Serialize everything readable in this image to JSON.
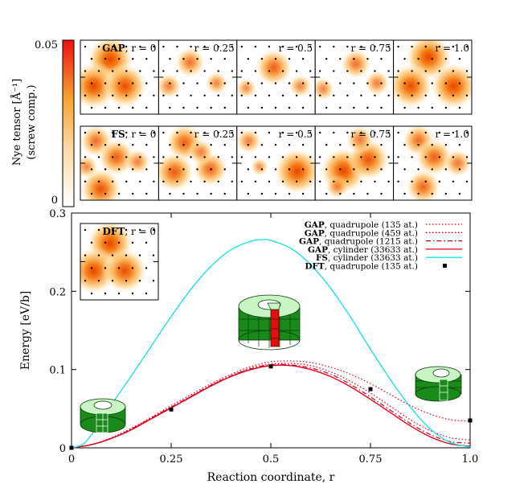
{
  "chart_data": {
    "type": "line",
    "xlabel": "Reaction coordinate, r",
    "ylabel": "Energy [eV/b]",
    "xlim": [
      0,
      1.0
    ],
    "ylim": [
      0,
      0.3
    ],
    "x_ticks": [
      "0",
      "0.25",
      "0.5",
      "0.75",
      "1.0"
    ],
    "y_ticks": [
      "0",
      "0.1",
      "0.2",
      "0.3"
    ],
    "legend_position": "top-right",
    "legend": [
      {
        "bold": "GAP",
        "text": ", quadrupole (135 at.)"
      },
      {
        "bold": "GAP",
        "text": ", quadrupole (459 at.)"
      },
      {
        "bold": "GAP",
        "text": ", quadrupole (1215 at.)"
      },
      {
        "bold": "GAP",
        "text": ", cylinder (33633 at.)"
      },
      {
        "bold": "FS",
        "text": ", cylinder (33633 at.)"
      },
      {
        "bold": "DFT",
        "text": ", quadrupole (135 at.)"
      }
    ],
    "series": [
      {
        "name": "GAP, quadrupole (135 at.)",
        "style": "dotted",
        "color": "#e8001a",
        "x": [
          0,
          0.05,
          0.1,
          0.15,
          0.2,
          0.25,
          0.3,
          0.35,
          0.4,
          0.45,
          0.5,
          0.55,
          0.6,
          0.65,
          0.7,
          0.75,
          0.8,
          0.85,
          0.9,
          0.95,
          1.0
        ],
        "y": [
          0,
          0.004,
          0.013,
          0.025,
          0.039,
          0.054,
          0.068,
          0.082,
          0.094,
          0.104,
          0.11,
          0.111,
          0.109,
          0.103,
          0.094,
          0.082,
          0.068,
          0.054,
          0.043,
          0.036,
          0.034
        ]
      },
      {
        "name": "GAP, quadrupole (459 at.)",
        "style": "dotted",
        "color": "#e8001a",
        "x": [
          0,
          0.05,
          0.1,
          0.15,
          0.2,
          0.25,
          0.3,
          0.35,
          0.4,
          0.45,
          0.5,
          0.55,
          0.6,
          0.65,
          0.7,
          0.75,
          0.8,
          0.85,
          0.9,
          0.95,
          1.0
        ],
        "y": [
          0,
          0.004,
          0.012,
          0.024,
          0.038,
          0.052,
          0.066,
          0.08,
          0.092,
          0.102,
          0.107,
          0.108,
          0.105,
          0.097,
          0.085,
          0.07,
          0.053,
          0.036,
          0.022,
          0.013,
          0.01
        ]
      },
      {
        "name": "GAP, quadrupole (1215 at.)",
        "style": "dashdot",
        "color": "#c8001a",
        "x": [
          0,
          0.05,
          0.1,
          0.15,
          0.2,
          0.25,
          0.3,
          0.35,
          0.4,
          0.45,
          0.5,
          0.55,
          0.6,
          0.65,
          0.7,
          0.75,
          0.8,
          0.85,
          0.9,
          0.95,
          1.0
        ],
        "y": [
          0,
          0.004,
          0.012,
          0.024,
          0.038,
          0.052,
          0.066,
          0.08,
          0.092,
          0.101,
          0.106,
          0.106,
          0.102,
          0.094,
          0.081,
          0.065,
          0.048,
          0.031,
          0.017,
          0.008,
          0.006
        ]
      },
      {
        "name": "GAP, cylinder (33633 at.)",
        "style": "solid",
        "color": "#e8001a",
        "x": [
          0,
          0.05,
          0.1,
          0.15,
          0.2,
          0.25,
          0.3,
          0.35,
          0.4,
          0.45,
          0.5,
          0.55,
          0.6,
          0.65,
          0.7,
          0.75,
          0.8,
          0.85,
          0.9,
          0.95,
          1.0
        ],
        "y": [
          0,
          0.004,
          0.012,
          0.023,
          0.037,
          0.051,
          0.065,
          0.079,
          0.091,
          0.1,
          0.105,
          0.105,
          0.1,
          0.091,
          0.078,
          0.062,
          0.045,
          0.028,
          0.014,
          0.005,
          0.002
        ]
      },
      {
        "name": "FS, cylinder (33633 at.)",
        "style": "solid",
        "color": "#1fe0e0",
        "x": [
          0,
          0.03,
          0.06,
          0.1,
          0.15,
          0.2,
          0.25,
          0.3,
          0.35,
          0.4,
          0.45,
          0.48,
          0.5,
          0.55,
          0.6,
          0.65,
          0.7,
          0.75,
          0.8,
          0.85,
          0.9,
          0.95,
          1.0
        ],
        "y": [
          0,
          0.005,
          0.024,
          0.055,
          0.092,
          0.13,
          0.168,
          0.203,
          0.232,
          0.253,
          0.264,
          0.266,
          0.265,
          0.255,
          0.234,
          0.204,
          0.167,
          0.126,
          0.087,
          0.052,
          0.024,
          0.007,
          0.001
        ]
      },
      {
        "name": "DFT, quadrupole (135 at.)",
        "style": "points",
        "color": "#000000",
        "x": [
          0,
          0.25,
          0.5,
          0.75,
          1.0
        ],
        "y": [
          0,
          0.049,
          0.104,
          0.075,
          0.035
        ]
      }
    ],
    "colorbar": {
      "label_line1": "Nye tensor [Å⁻¹]",
      "label_line2": "(screw comp.)",
      "max_label": "0.05",
      "min_label": "0",
      "range": [
        0,
        0.05
      ]
    },
    "nye_maps": {
      "gap_row": {
        "method": "GAP",
        "labels": [
          ", r = 0",
          "r = 0.25",
          "r = 0.5",
          "r = 0.75",
          "r = 1.0"
        ]
      },
      "fs_row": {
        "method": "FS",
        "labels": [
          ", r = 0",
          "r = 0.25",
          "r = 0.5",
          "r = 0.75",
          "r = 1.0"
        ]
      },
      "dft_inset": {
        "method": "DFT",
        "label": ", r = 0"
      }
    }
  }
}
